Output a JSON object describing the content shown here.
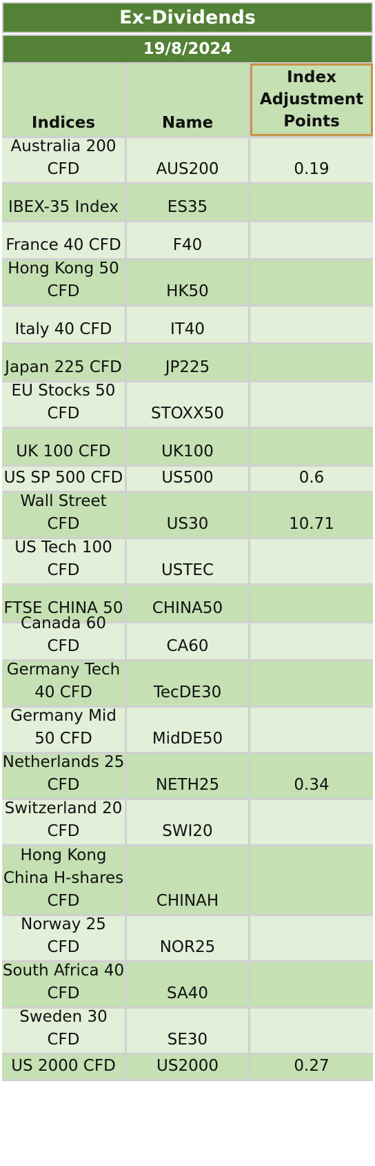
{
  "title": "Ex-Dividends",
  "date": "19/8/2024",
  "headers": {
    "indices": "Indices",
    "name": "Name",
    "points": "Index Adjustment Points"
  },
  "rows": [
    {
      "index": "Australia 200 CFD",
      "name": "AUS200",
      "points": "0.19"
    },
    {
      "index": "IBEX-35 Index",
      "name": "ES35",
      "points": ""
    },
    {
      "index": "France 40 CFD",
      "name": "F40",
      "points": ""
    },
    {
      "index": "Hong Kong 50 CFD",
      "name": "HK50",
      "points": ""
    },
    {
      "index": "Italy 40 CFD",
      "name": "IT40",
      "points": ""
    },
    {
      "index": "Japan 225 CFD",
      "name": "JP225",
      "points": ""
    },
    {
      "index": "EU Stocks 50 CFD",
      "name": "STOXX50",
      "points": ""
    },
    {
      "index": "UK 100 CFD",
      "name": "UK100",
      "points": ""
    },
    {
      "index": "US SP 500 CFD",
      "name": "US500",
      "points": "0.6"
    },
    {
      "index": "Wall Street CFD",
      "name": "US30",
      "points": "10.71"
    },
    {
      "index": "US Tech 100 CFD",
      "name": "USTEC",
      "points": ""
    },
    {
      "index": "FTSE CHINA 50",
      "name": "CHINA50",
      "points": ""
    },
    {
      "index": "Canada 60 CFD",
      "name": "CA60",
      "points": ""
    },
    {
      "index": "Germany Tech 40 CFD",
      "name": "TecDE30",
      "points": ""
    },
    {
      "index": "Germany Mid 50 CFD",
      "name": "MidDE50",
      "points": ""
    },
    {
      "index": "Netherlands 25 CFD",
      "name": "NETH25",
      "points": "0.34"
    },
    {
      "index": "Switzerland 20 CFD",
      "name": "SWI20",
      "points": ""
    },
    {
      "index": "Hong Kong China H-shares CFD",
      "name": "CHINAH",
      "points": ""
    },
    {
      "index": "Norway 25 CFD",
      "name": "NOR25",
      "points": ""
    },
    {
      "index": "South Africa 40 CFD",
      "name": "SA40",
      "points": ""
    },
    {
      "index": "Sweden 30 CFD",
      "name": "SE30",
      "points": ""
    },
    {
      "index": "US 2000 CFD",
      "name": "US2000",
      "points": "0.27"
    }
  ]
}
